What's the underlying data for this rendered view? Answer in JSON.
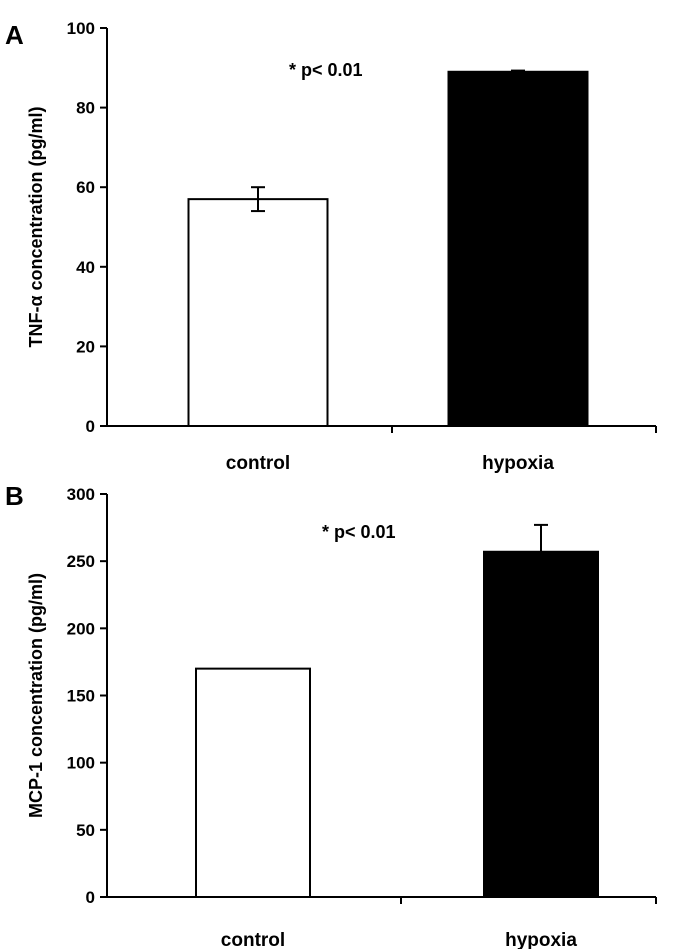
{
  "chart_data": [
    {
      "type": "bar",
      "panel": "A",
      "categories": [
        "control",
        "hypoxia"
      ],
      "values": [
        57,
        89
      ],
      "errors": [
        3,
        0.3
      ],
      "bar_colors": [
        "#ffffff",
        "#000000"
      ],
      "ylabel": "TNF-α concentration (pg/ml)",
      "ylim": [
        0,
        100
      ],
      "yticks": [
        0,
        20,
        40,
        60,
        80,
        100
      ],
      "annotation": "* p< 0.01",
      "grid": false
    },
    {
      "type": "bar",
      "panel": "B",
      "categories": [
        "control",
        "hypoxia"
      ],
      "values": [
        170,
        257
      ],
      "errors": [
        0,
        20
      ],
      "bar_colors": [
        "#ffffff",
        "#000000"
      ],
      "ylabel": "MCP-1 concentration (pg/ml)",
      "ylim": [
        0,
        300
      ],
      "yticks": [
        0,
        50,
        100,
        150,
        200,
        250,
        300
      ],
      "annotation": "* p< 0.01",
      "grid": false
    }
  ]
}
